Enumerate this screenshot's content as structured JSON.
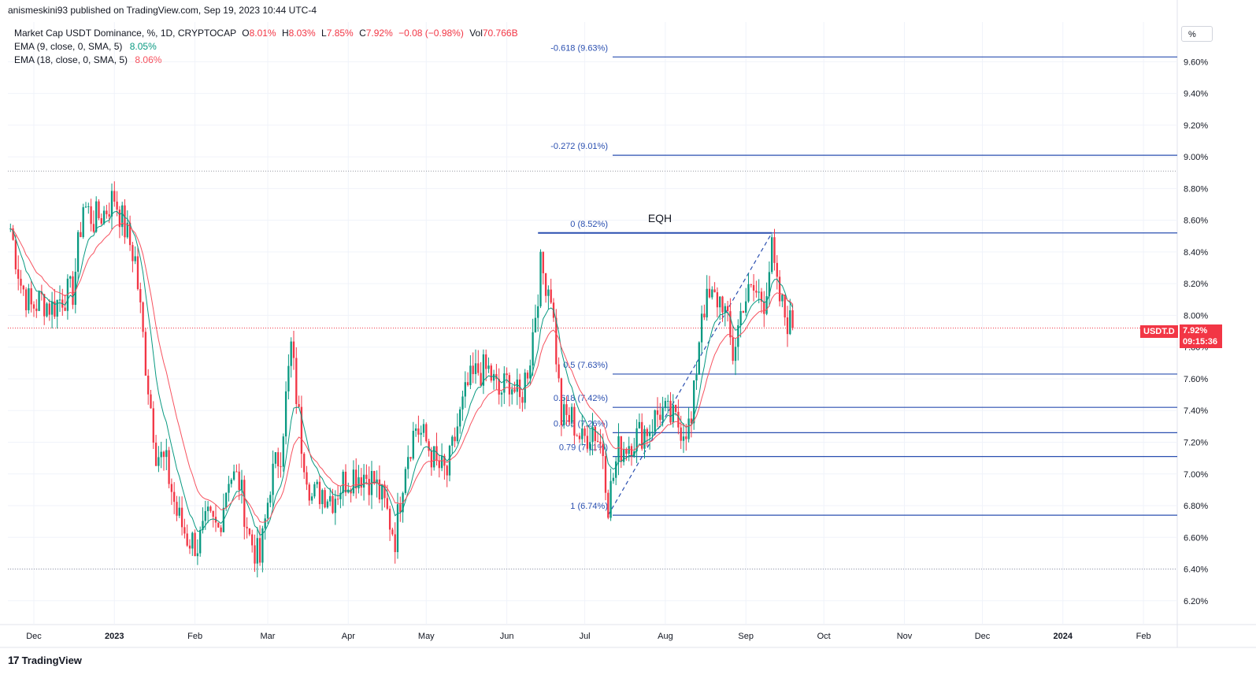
{
  "header": {
    "attribution": "anismeskini93 published on TradingView.com, Sep 19, 2023 10:44 UTC-4",
    "symbol": "Market Cap USDT Dominance, %, 1D, CRYPTOCAP",
    "ohlc_labels": {
      "o": "O",
      "h": "H",
      "l": "L",
      "c": "C"
    },
    "open": "8.01%",
    "high": "8.03%",
    "low": "7.85%",
    "close": "7.92%",
    "change": "−0.08 (−0.98%)",
    "vol_label": "Vol",
    "volume": "70.766B",
    "ema1_label": "EMA (9, close, 0, SMA, 5)",
    "ema1_value": "8.05%",
    "ema2_label": "EMA (18, close, 0, SMA, 5)",
    "ema2_value": "8.06%"
  },
  "toolbar": {
    "scale_button": "%"
  },
  "footer": {
    "logo_text": "TradingView",
    "logo_mark": "17"
  },
  "price_tag": {
    "symbol": "USDT.D",
    "price": "7.92%",
    "countdown": "09:15:36"
  },
  "colors": {
    "up": "#089981",
    "down": "#f23645",
    "ema9": "#089981",
    "ema18": "#f7525f",
    "fib": "#2a4fb0",
    "price_line": "#f23645",
    "grid": "#f0f3fa"
  },
  "chart_data": {
    "type": "candlestick",
    "y_axis": {
      "unit": "%",
      "range": [
        6.05,
        9.85
      ],
      "ticks": [
        "9.60%",
        "9.40%",
        "9.20%",
        "9.00%",
        "8.80%",
        "8.60%",
        "8.40%",
        "8.20%",
        "8.00%",
        "7.80%",
        "7.60%",
        "7.40%",
        "7.20%",
        "7.00%",
        "6.80%",
        "6.60%",
        "6.40%",
        "6.20%"
      ],
      "tick_values": [
        9.6,
        9.4,
        9.2,
        9.0,
        8.8,
        8.6,
        8.4,
        8.2,
        8.0,
        7.8,
        7.6,
        7.4,
        7.2,
        7.0,
        6.8,
        6.6,
        6.4,
        6.2
      ]
    },
    "x_axis": {
      "ticks": [
        "Dec",
        "2023",
        "Feb",
        "Mar",
        "Apr",
        "May",
        "Jun",
        "Jul",
        "Aug",
        "Sep",
        "Oct",
        "Nov",
        "Dec",
        "2024",
        "Feb"
      ],
      "tick_dates": [
        "2022-12-01",
        "2023-01-01",
        "2023-02-01",
        "2023-03-01",
        "2023-04-01",
        "2023-05-01",
        "2023-06-01",
        "2023-07-01",
        "2023-08-01",
        "2023-09-01",
        "2023-10-01",
        "2023-11-01",
        "2023-12-01",
        "2024-01-01",
        "2024-02-01"
      ],
      "bold_ticks": [
        "2023",
        "2024"
      ]
    },
    "close_series": [
      [
        "2022-11-22",
        8.55
      ],
      [
        "2022-11-26",
        8.2
      ],
      [
        "2022-11-30",
        8.05
      ],
      [
        "2022-12-04",
        8.1
      ],
      [
        "2022-12-08",
        8.05
      ],
      [
        "2022-12-12",
        8.12
      ],
      [
        "2022-12-16",
        8.15
      ],
      [
        "2022-12-20",
        8.7
      ],
      [
        "2022-12-24",
        8.6
      ],
      [
        "2022-12-28",
        8.65
      ],
      [
        "2023-01-01",
        8.75
      ],
      [
        "2023-01-05",
        8.55
      ],
      [
        "2023-01-09",
        8.35
      ],
      [
        "2023-01-13",
        7.7
      ],
      [
        "2023-01-17",
        7.15
      ],
      [
        "2023-01-21",
        7.05
      ],
      [
        "2023-01-25",
        6.75
      ],
      [
        "2023-01-29",
        6.6
      ],
      [
        "2023-02-02",
        6.55
      ],
      [
        "2023-02-06",
        6.7
      ],
      [
        "2023-02-10",
        6.65
      ],
      [
        "2023-02-14",
        7.0
      ],
      [
        "2023-02-18",
        6.95
      ],
      [
        "2023-02-22",
        6.6
      ],
      [
        "2023-02-26",
        6.45
      ],
      [
        "2023-03-02",
        6.95
      ],
      [
        "2023-03-06",
        7.15
      ],
      [
        "2023-03-10",
        7.8
      ],
      [
        "2023-03-14",
        7.2
      ],
      [
        "2023-03-18",
        6.85
      ],
      [
        "2023-03-22",
        6.9
      ],
      [
        "2023-03-26",
        6.85
      ],
      [
        "2023-03-30",
        6.95
      ],
      [
        "2023-04-03",
        7.0
      ],
      [
        "2023-04-07",
        7.0
      ],
      [
        "2023-04-11",
        6.95
      ],
      [
        "2023-04-15",
        6.8
      ],
      [
        "2023-04-19",
        6.6
      ],
      [
        "2023-04-23",
        7.1
      ],
      [
        "2023-04-27",
        7.3
      ],
      [
        "2023-05-01",
        7.2
      ],
      [
        "2023-05-05",
        7.05
      ],
      [
        "2023-05-09",
        7.0
      ],
      [
        "2023-05-13",
        7.3
      ],
      [
        "2023-05-17",
        7.55
      ],
      [
        "2023-05-21",
        7.65
      ],
      [
        "2023-05-25",
        7.65
      ],
      [
        "2023-05-29",
        7.5
      ],
      [
        "2023-06-02",
        7.6
      ],
      [
        "2023-06-06",
        7.45
      ],
      [
        "2023-06-10",
        7.75
      ],
      [
        "2023-06-14",
        8.3
      ],
      [
        "2023-06-18",
        8.15
      ],
      [
        "2023-06-22",
        7.35
      ],
      [
        "2023-06-26",
        7.35
      ],
      [
        "2023-06-30",
        7.2
      ],
      [
        "2023-07-04",
        7.3
      ],
      [
        "2023-07-08",
        7.15
      ],
      [
        "2023-07-10",
        6.82
      ],
      [
        "2023-07-14",
        7.15
      ],
      [
        "2023-07-18",
        7.2
      ],
      [
        "2023-07-22",
        7.25
      ],
      [
        "2023-07-26",
        7.3
      ],
      [
        "2023-07-30",
        7.4
      ],
      [
        "2023-08-03",
        7.35
      ],
      [
        "2023-08-07",
        7.3
      ],
      [
        "2023-08-11",
        7.3
      ],
      [
        "2023-08-15",
        8.05
      ],
      [
        "2023-08-19",
        8.1
      ],
      [
        "2023-08-23",
        8.1
      ],
      [
        "2023-08-27",
        7.75
      ],
      [
        "2023-08-31",
        8.1
      ],
      [
        "2023-09-04",
        8.15
      ],
      [
        "2023-09-08",
        8.1
      ],
      [
        "2023-09-11",
        8.4
      ],
      [
        "2023-09-13",
        8.15
      ],
      [
        "2023-09-16",
        8.0
      ],
      [
        "2023-09-19",
        7.92
      ]
    ],
    "fibonacci": {
      "levels": [
        {
          "label": "-0.618 (9.63%)",
          "value": 9.63
        },
        {
          "label": "-0.272 (9.01%)",
          "value": 9.01
        },
        {
          "label": "0 (8.52%)",
          "value": 8.52
        },
        {
          "label": "0.5 (7.63%)",
          "value": 7.63
        },
        {
          "label": "0.618 (7.42%)",
          "value": 7.42
        },
        {
          "label": "0.705 (7.26%)",
          "value": 7.26
        },
        {
          "label": "0.79 (7.11%)",
          "value": 7.11
        },
        {
          "label": "1 (6.74%)",
          "value": 6.74
        }
      ],
      "anchor_low": {
        "date": "2023-07-10",
        "value": 6.74
      },
      "anchor_high": {
        "date": "2023-09-11",
        "value": 8.52
      }
    },
    "annotations": [
      {
        "text": "EQH",
        "value": 8.52
      }
    ],
    "horizontal_levels": [
      8.91,
      6.4
    ],
    "last_price": 7.92,
    "grid": true
  }
}
